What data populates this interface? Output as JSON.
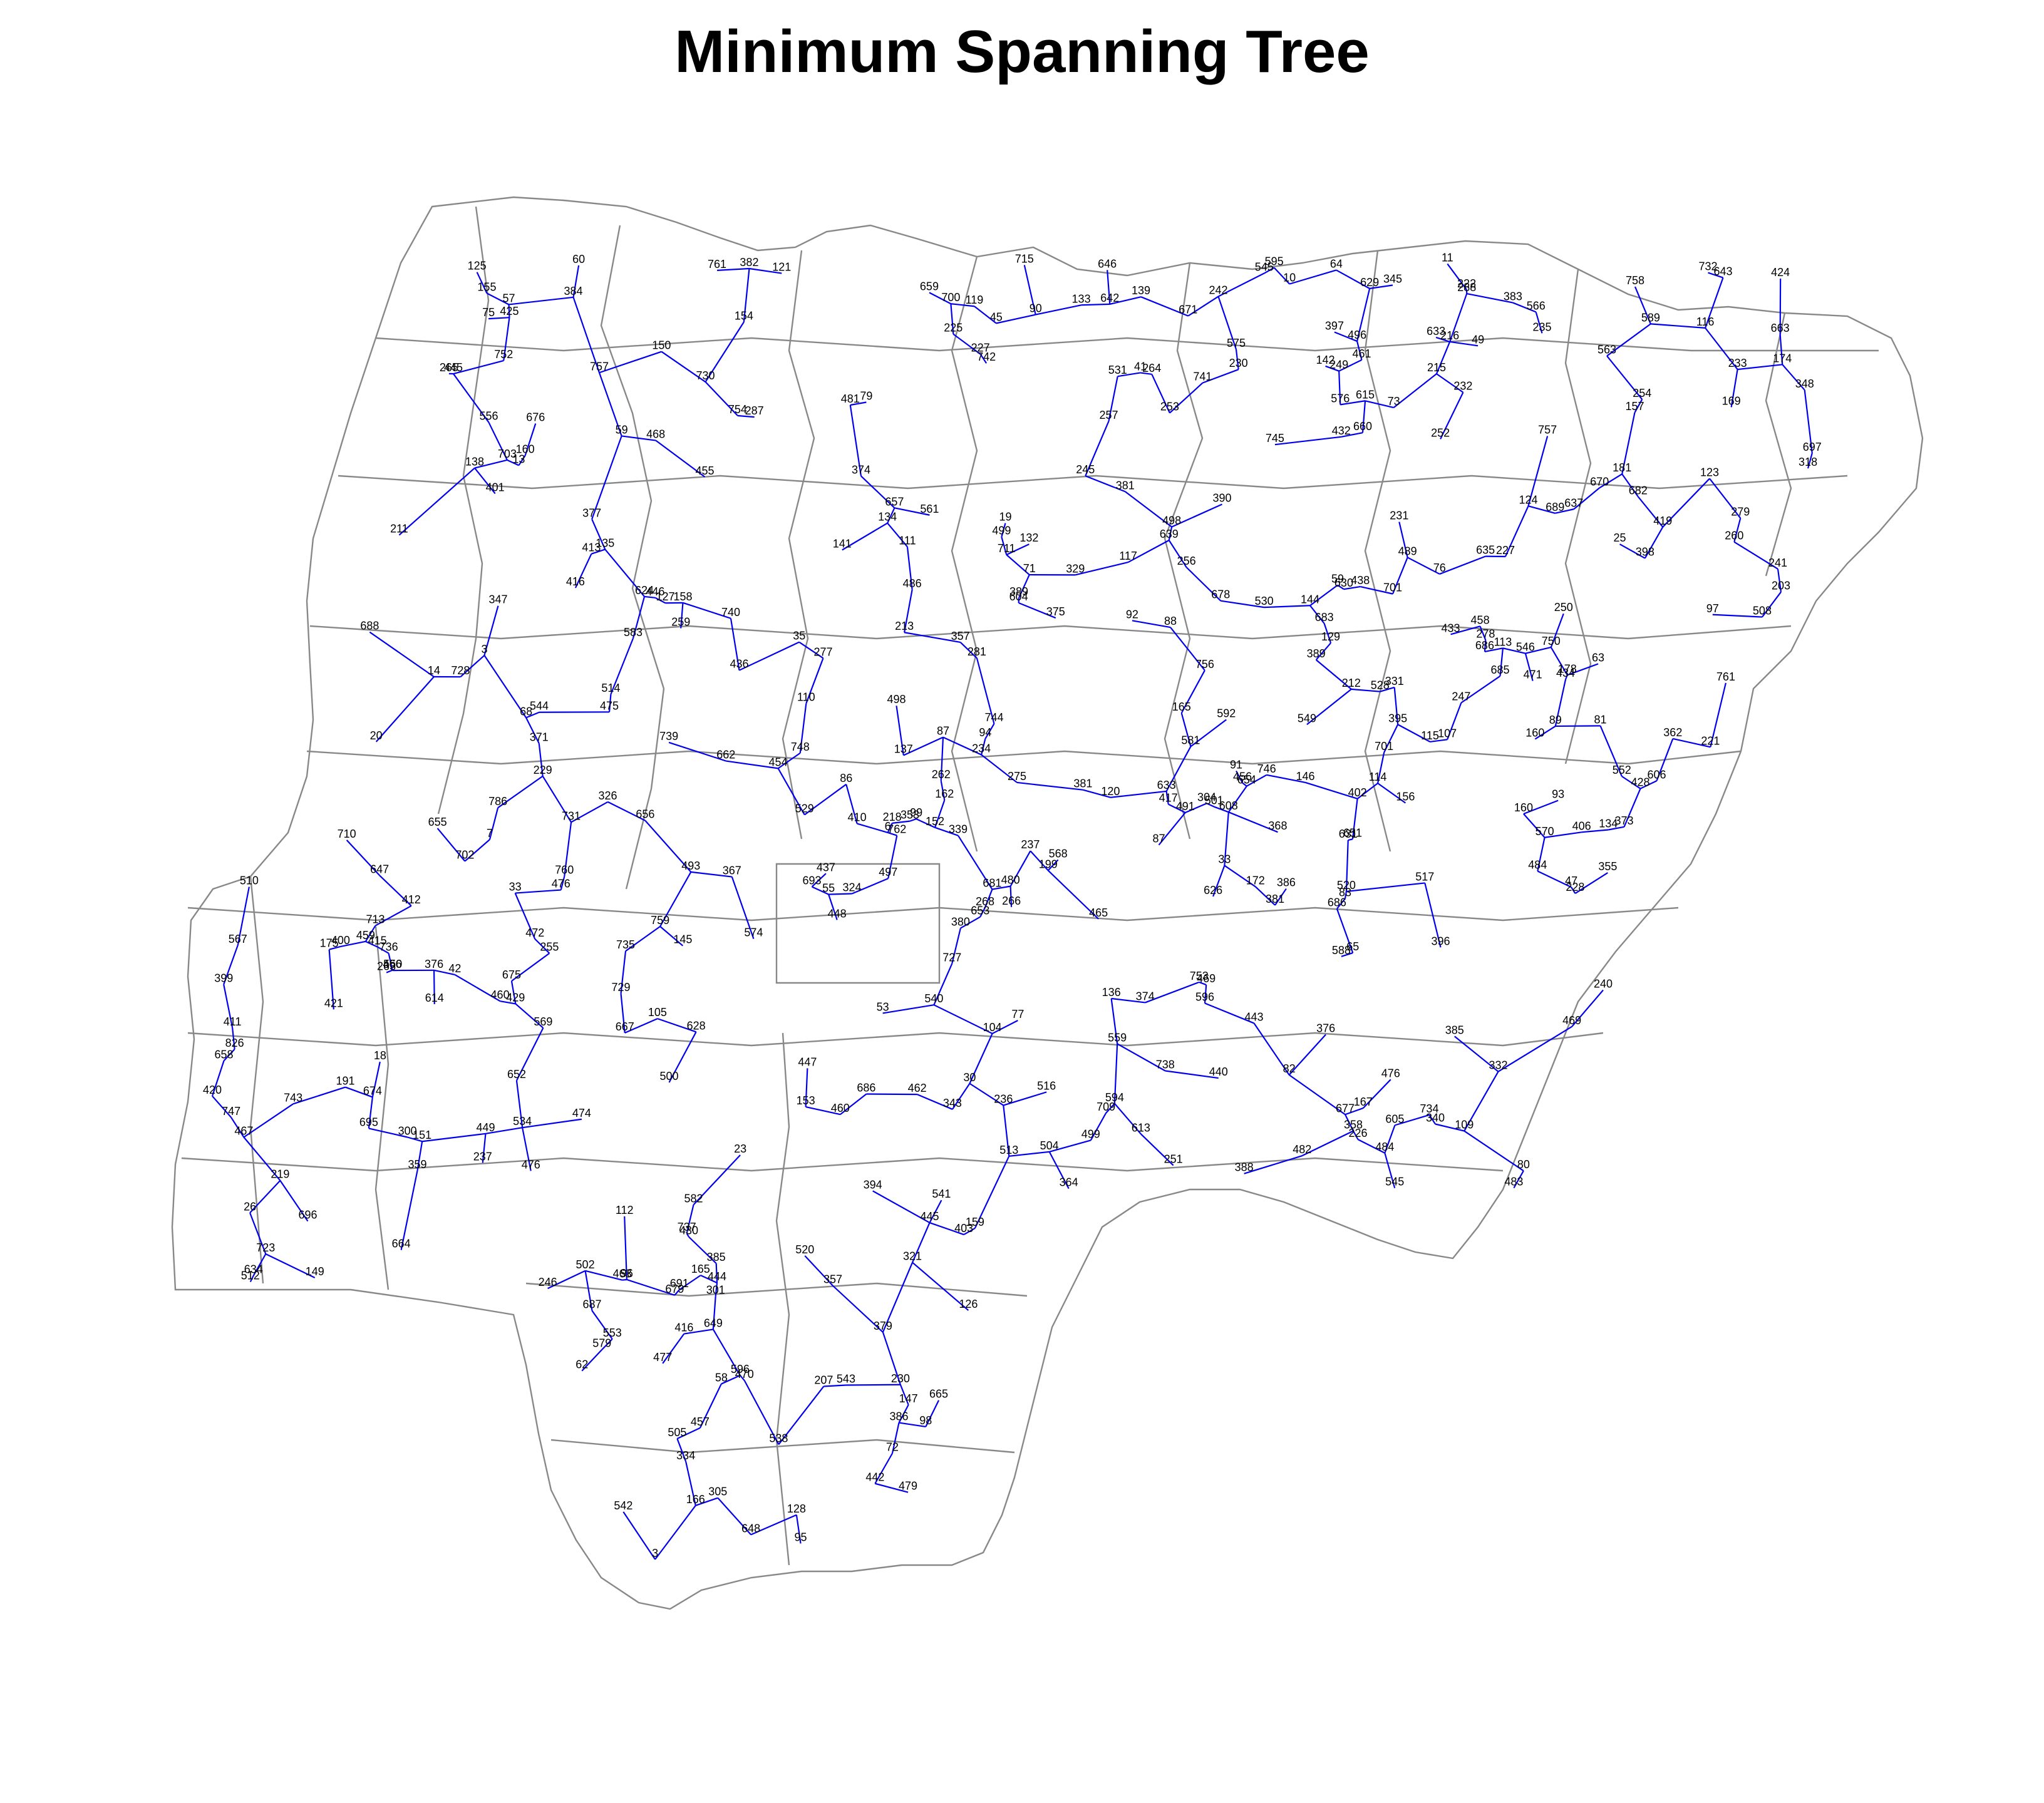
{
  "title": "Minimum Spanning Tree",
  "colors": {
    "edge": "#0000ee",
    "boundary": "#888888",
    "text": "#000000"
  },
  "graph": {
    "nodes": [
      "389",
      "226",
      "247",
      "689",
      "256",
      "246",
      "647",
      "107",
      "739",
      "353",
      "670",
      "728",
      "448",
      "635",
      "665",
      "63",
      "73",
      "741",
      "114",
      "701",
      "86",
      "479",
      "659",
      "59",
      "64",
      "259",
      "111",
      "47",
      "388",
      "399",
      "380",
      "129",
      "472",
      "420",
      "146",
      "679",
      "429",
      "251",
      "126",
      "58",
      "687",
      "218",
      "761",
      "735",
      "482",
      "83",
      "660",
      "639",
      "651",
      "23",
      "748",
      "514",
      "466",
      "434",
      "480",
      "121",
      "91",
      "483",
      "395",
      "760",
      "95",
      "416",
      "112",
      "649",
      "145",
      "396",
      "484",
      "468",
      "383",
      "412",
      "94",
      "476",
      "165",
      "152",
      "756",
      "654",
      "97",
      "442",
      "137",
      "166",
      "484b",
      "444",
      "440",
      "264",
      "747",
      "416b",
      "676",
      "250",
      "470",
      "80",
      "231",
      "227",
      "445",
      "475",
      "266",
      "425",
      "463",
      "516",
      "253",
      "406",
      "82",
      "754",
      "753",
      "160",
      "377",
      "497",
      "513",
      "465",
      "158",
      "382",
      "469",
      "432",
      "89",
      "686",
      "467",
      "225",
      "141",
      "633",
      "230",
      "144",
      "265",
      "596",
      "142",
      "127",
      "688",
      "254",
      "219",
      "402",
      "476b",
      "476c",
      "502",
      "662",
      "99",
      "233",
      "637",
      "128",
      "730",
      "153",
      "237",
      "236",
      "642",
      "693",
      "376",
      "367",
      "228",
      "379",
      "410",
      "240",
      "493",
      "150",
      "125",
      "686b",
      "260",
      "731",
      "229",
      "517",
      "109",
      "685",
      "232",
      "678",
      "700",
      "159",
      "671",
      "318",
      "481",
      "437",
      "646",
      "758",
      "242",
      "110",
      "648",
      "147",
      "149",
      "339",
      "301",
      "390",
      "381",
      "139",
      "436",
      "398",
      "460",
      "695",
      "757",
      "417",
      "505",
      "222",
      "113",
      "138",
      "68",
      "489",
      "500",
      "501",
      "162",
      "446",
      "287",
      "449",
      "681",
      "424",
      "35",
      "544",
      "746",
      "98",
      "245",
      "268",
      "151",
      "96",
      "49",
      "105",
      "608",
      "400",
      "87",
      "255",
      "663",
      "674",
      "471",
      "454",
      "529",
      "157",
      "241",
      "221",
      "757b",
      "750",
      "115",
      "683",
      "385",
      "386",
      "384",
      "93",
      "643",
      "90",
      "117",
      "477",
      "415",
      "374",
      "394",
      "389b",
      "504",
      "381b",
      "667",
      "626",
      "740",
      "628",
      "123",
      "136",
      "459",
      "496",
      "237",
      "169",
      "104",
      "411",
      "252",
      "682",
      "677",
      "133",
      "257",
      "499",
      "11",
      "421",
      "445b",
      "438",
      "696",
      "3",
      "508",
      "457",
      "19",
      "462",
      "428",
      "92",
      "655",
      "45",
      "729",
      "430",
      "569",
      "460b",
      "534",
      "419",
      "75",
      "281",
      "160b",
      "474",
      "403",
      "629",
      "491",
      "455",
      "634",
      "664",
      "456",
      "401",
      "736",
      "498",
      "458",
      "376b",
      "752",
      "759",
      "62",
      "486",
      "235",
      "375",
      "230b",
      "88",
      "697",
      "738",
      "761b",
      "234",
      "443",
      "657",
      "686c",
      "723",
      "348",
      "594",
      "581",
      "653",
      "652",
      "499b",
      "172",
      "340",
      "743",
      "631",
      "72",
      "368",
      "397",
      "371",
      "355",
      "826",
      "71",
      "596b",
      "588",
      "381c",
      "469b",
      "742",
      "498b",
      "357",
      "374b",
      "574",
      "570",
      "583",
      "20",
      "60",
      "263",
      "156",
      "30",
      "59",
      "579",
      "543",
      "262",
      "433",
      "249",
      "691",
      "461",
      "711",
      "413",
      "447",
      "737",
      "727",
      "160c",
      "556",
      "541",
      "582",
      "116",
      "33",
      "41",
      "134",
      "343",
      "277",
      "275",
      "6",
      "7",
      "174",
      "212",
      "175",
      "14",
      "81",
      "567",
      "542",
      "531",
      "321",
      "300",
      "658",
      "545",
      "326",
      "278",
      "154",
      "559",
      "334",
      "347",
      "199",
      "615",
      "614",
      "709",
      "178",
      "595",
      "329",
      "732",
      "656",
      "575",
      "203",
      "734",
      "786",
      "364",
      "385b",
      "132",
      "119",
      "630",
      "181",
      "675",
      "552",
      "124",
      "512",
      "42",
      "155",
      "26",
      "25",
      "10",
      "549",
      "510",
      "57",
      "65",
      "762",
      "540",
      "744",
      "211",
      "324",
      "33b",
      "745",
      "589",
      "553",
      "165b",
      "373",
      "13",
      "215",
      "3b",
      "331",
      "305",
      "550",
      "702",
      "357b",
      "576",
      "528",
      "304",
      "191",
      "53",
      "79",
      "213",
      "703",
      "520",
      "386b",
      "216",
      "563",
      "18",
      "701b",
      "561",
      "362",
      "715",
      "76",
      "566",
      "605",
      "606",
      "77",
      "55",
      "345",
      "359",
      "332",
      "358",
      "568",
      "538",
      "546",
      "134b",
      "135",
      "279",
      "288",
      "207",
      "520b",
      "604",
      "710",
      "624",
      "713",
      "227b",
      "167",
      "592",
      "545b",
      "120",
      "87b",
      "530",
      "613",
      "633b"
    ],
    "edge_count": 775
  },
  "legend": null
}
